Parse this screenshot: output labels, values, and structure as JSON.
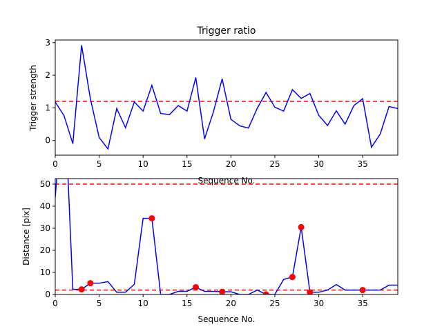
{
  "chart_data": [
    {
      "type": "line",
      "title": "Trigger ratio",
      "xlabel": "Sequence No.",
      "ylabel": "Trigger strength",
      "xlim": [
        0,
        39
      ],
      "ylim": [
        -0.45,
        3.08
      ],
      "xticks": [
        0,
        5,
        10,
        15,
        20,
        25,
        30,
        35
      ],
      "yticks": [
        0,
        1,
        2,
        3
      ],
      "grid": false,
      "series": [
        {
          "color": "#0000ff",
          "x": [
            0,
            1,
            2,
            3,
            4,
            5,
            6,
            7,
            8,
            9,
            10,
            11,
            12,
            13,
            14,
            15,
            16,
            17,
            18,
            19,
            20,
            21,
            22,
            23,
            24,
            25,
            26,
            27,
            28,
            29,
            30,
            31,
            32,
            33,
            34,
            35,
            36,
            37,
            38,
            39
          ],
          "values": [
            1.18,
            0.76,
            -0.1,
            2.92,
            1.28,
            0.09,
            -0.26,
            0.98,
            0.39,
            1.18,
            0.9,
            1.69,
            0.83,
            0.79,
            1.07,
            0.9,
            1.93,
            0.05,
            0.87,
            1.89,
            0.65,
            0.45,
            0.38,
            0.99,
            1.47,
            1.02,
            0.9,
            1.56,
            1.29,
            1.44,
            0.77,
            0.46,
            0.91,
            0.5,
            1.07,
            1.28,
            -0.21,
            0.2,
            1.04,
            0.98
          ]
        }
      ],
      "hlines": [
        {
          "y": 1.2,
          "color": "#ff0000",
          "style": "dashed"
        }
      ]
    },
    {
      "type": "line",
      "title": "",
      "xlabel": "Sequence No.",
      "ylabel": "Distance [pix]",
      "xlim": [
        0,
        39
      ],
      "ylim": [
        0,
        52.5
      ],
      "xticks": [
        0,
        5,
        10,
        15,
        20,
        25,
        30,
        35
      ],
      "yticks": [
        0,
        10,
        20,
        30,
        40,
        50
      ],
      "grid": false,
      "series": [
        {
          "color": "#0000ff",
          "x": [
            0,
            1,
            2,
            3,
            4,
            5,
            6,
            7,
            8,
            9,
            10,
            11,
            12,
            13,
            14,
            15,
            16,
            17,
            18,
            19,
            20,
            21,
            22,
            23,
            24,
            25,
            26,
            27,
            28,
            29,
            30,
            31,
            32,
            33,
            34,
            35,
            36,
            37,
            38,
            39
          ],
          "values": [
            44,
            95,
            2.3,
            2.3,
            5.1,
            5.1,
            5.8,
            1.0,
            1.0,
            4.6,
            34.5,
            34.5,
            0,
            0,
            1.4,
            1.4,
            3.3,
            1.4,
            1.4,
            1.2,
            1.2,
            0,
            0,
            2.0,
            0,
            0,
            6.8,
            7.9,
            30.5,
            1.0,
            1.0,
            2.0,
            4.5,
            2.0,
            2.0,
            2.0,
            2.0,
            2.0,
            4.2,
            4.2
          ]
        },
        {
          "color": "#ff0000",
          "marker": "circle",
          "x": [
            3,
            4,
            11,
            16,
            19,
            24,
            27,
            28,
            29,
            35
          ],
          "values": [
            2.3,
            5.1,
            34.5,
            3.3,
            1.2,
            0,
            7.9,
            30.5,
            1.0,
            2.0
          ]
        }
      ],
      "hlines": [
        {
          "y": 50,
          "color": "#ff0000",
          "style": "dashed"
        },
        {
          "y": 2,
          "color": "#ff0000",
          "style": "dashed"
        }
      ]
    }
  ]
}
